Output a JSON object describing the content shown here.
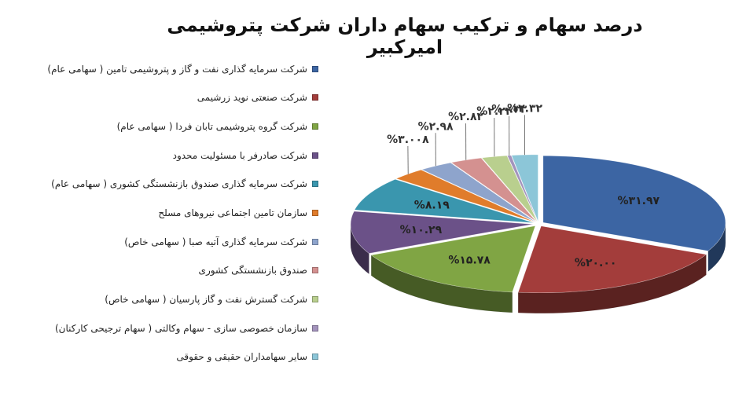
{
  "chart_data": {
    "type": "pie",
    "style": "3d-exploded",
    "title": "درصد سهام و ترکیب سهام داران شرکت پتروشیمی امیرکبیر",
    "legend_position": "left",
    "slices": [
      {
        "name": "شرکت سرمایه گذاری نفت و گاز و پتروشیمی تامین ( سهامی عام)",
        "value": 31.97,
        "label": "%۳۱.۹۷",
        "color": "#3C65A3"
      },
      {
        "name": "شرکت صنعتی نوید زرشیمی",
        "value": 20.0,
        "label": "%۲۰.۰۰",
        "color": "#A33D3B"
      },
      {
        "name": "شرکت گروه پتروشیمی تابان فردا ( سهامی عام)",
        "value": 15.78,
        "label": "%۱۵.۷۸",
        "color": "#80A544"
      },
      {
        "name": "شرکت صادرفر با مسئولیت محدود",
        "value": 10.29,
        "label": "%۱۰.۲۹",
        "color": "#6B5188"
      },
      {
        "name": "شرکت سرمایه گذاری صندوق بازنشستگی کشوری ( سهامی عام)",
        "value": 8.19,
        "label": "%۸.۱۹",
        "color": "#3A96AE"
      },
      {
        "name": "سازمان تامین اجتماعی نیروهای مسلح",
        "value": 3.008,
        "label": "%۳.۰۰۸",
        "color": "#E07C2B"
      },
      {
        "name": "شرکت سرمایه گذاری آتیه صبا ( سهامی خاص)",
        "value": 2.98,
        "label": "%۲.۹۸",
        "color": "#8EA4CC"
      },
      {
        "name": "صندوق بازنشستگی کشوری",
        "value": 2.82,
        "label": "%۲.۸۲",
        "color": "#D49190"
      },
      {
        "name": "شرکت گسترش نفت و گاز پارسیان ( سهامی خاص)",
        "value": 2.24,
        "label": "%۲.۲۴",
        "color": "#B9CF8E"
      },
      {
        "name": "سازمان خصوصی سازی - سهام وکالتی ( سهام ترجیحی کارکنان)",
        "value": 0.33,
        "label": "%۰.۳۳",
        "color": "#A393BC"
      },
      {
        "name": "سایر سهامداران حقیقی و حقوقی",
        "value": 2.32,
        "label": "%۲.۳۲",
        "color": "#8CC6D8"
      }
    ]
  }
}
